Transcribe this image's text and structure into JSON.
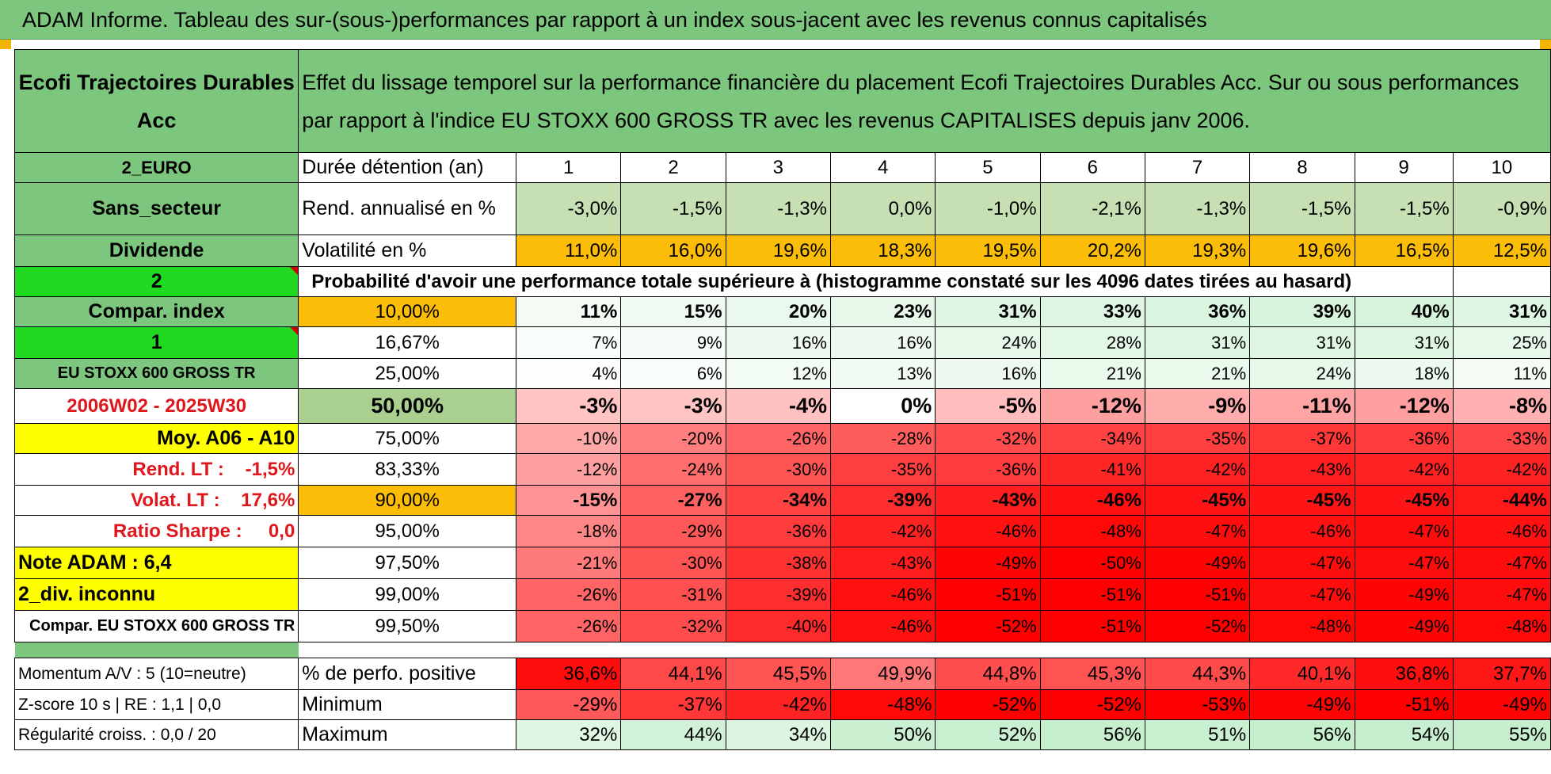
{
  "banner_title": "ADAM Informe. Tableau des sur-(sous-)performances par rapport à un index sous-jacent avec les revenus connus capitalisés",
  "fund_name": "Ecofi Trajectoires Durables Acc",
  "description": "Effet du lissage temporel sur la performance financière du placement Ecofi Trajectoires Durables Acc. Sur ou sous performances par rapport à l'indice EU STOXX 600 GROSS TR avec les revenus CAPITALISES depuis janv 2006.",
  "left_labels": {
    "currency": "2_EURO",
    "sector": "Sans_secteur",
    "dividend": "Dividende",
    "param1": "2",
    "compar_index": "Compar. index",
    "param2": "1",
    "index_name": "EU STOXX 600 GROSS TR",
    "period": "2006W02 - 2025W30",
    "moy": "Moy. A06 - A10",
    "rend_lt": "Rend. LT :    -1,5%",
    "volat_lt": "Volat. LT :    17,6%",
    "sharpe": "Ratio Sharpe :     0,0",
    "note": "Note ADAM : 6,4",
    "div": "2_div. inconnu",
    "compar_name": "Compar. EU STOXX 600 GROSS TR"
  },
  "header": {
    "duration_label": "Durée détention (an)",
    "years": [
      "1",
      "2",
      "3",
      "4",
      "5",
      "6",
      "7",
      "8",
      "9",
      "10"
    ]
  },
  "rend": {
    "label": "Rend. annualisé en %",
    "values": [
      "-3,0%",
      "-1,5%",
      "-1,3%",
      "0,0%",
      "-1,0%",
      "-2,1%",
      "-1,3%",
      "-1,5%",
      "-1,5%",
      "-0,9%"
    ]
  },
  "vol": {
    "label": "Volatilité en %",
    "values": [
      "11,0%",
      "16,0%",
      "19,6%",
      "18,3%",
      "19,5%",
      "20,2%",
      "19,3%",
      "19,6%",
      "16,5%",
      "12,5%"
    ]
  },
  "prob_title": "Probabilité d'avoir une performance totale supérieure à (histogramme constaté sur les 4096 dates tirées au hasard)",
  "prob_rows": [
    {
      "pct": "10,00%",
      "values": [
        "11%",
        "15%",
        "20%",
        "23%",
        "31%",
        "33%",
        "36%",
        "39%",
        "40%",
        "31%"
      ]
    },
    {
      "pct": "16,67%",
      "values": [
        "7%",
        "9%",
        "16%",
        "16%",
        "24%",
        "28%",
        "31%",
        "31%",
        "31%",
        "25%"
      ]
    },
    {
      "pct": "25,00%",
      "values": [
        "4%",
        "6%",
        "12%",
        "13%",
        "16%",
        "21%",
        "21%",
        "24%",
        "18%",
        "11%"
      ]
    },
    {
      "pct": "50,00%",
      "values": [
        "-3%",
        "-3%",
        "-4%",
        "0%",
        "-5%",
        "-12%",
        "-9%",
        "-11%",
        "-12%",
        "-8%"
      ]
    },
    {
      "pct": "75,00%",
      "values": [
        "-10%",
        "-20%",
        "-26%",
        "-28%",
        "-32%",
        "-34%",
        "-35%",
        "-37%",
        "-36%",
        "-33%"
      ]
    },
    {
      "pct": "83,33%",
      "values": [
        "-12%",
        "-24%",
        "-30%",
        "-35%",
        "-36%",
        "-41%",
        "-42%",
        "-43%",
        "-42%",
        "-42%"
      ]
    },
    {
      "pct": "90,00%",
      "values": [
        "-15%",
        "-27%",
        "-34%",
        "-39%",
        "-43%",
        "-46%",
        "-45%",
        "-45%",
        "-45%",
        "-44%"
      ]
    },
    {
      "pct": "95,00%",
      "values": [
        "-18%",
        "-29%",
        "-36%",
        "-42%",
        "-46%",
        "-48%",
        "-47%",
        "-46%",
        "-47%",
        "-46%"
      ]
    },
    {
      "pct": "97,50%",
      "values": [
        "-21%",
        "-30%",
        "-38%",
        "-43%",
        "-49%",
        "-50%",
        "-49%",
        "-47%",
        "-47%",
        "-47%"
      ]
    },
    {
      "pct": "99,00%",
      "values": [
        "-26%",
        "-31%",
        "-39%",
        "-46%",
        "-51%",
        "-51%",
        "-51%",
        "-47%",
        "-49%",
        "-47%"
      ]
    },
    {
      "pct": "99,50%",
      "values": [
        "-26%",
        "-32%",
        "-40%",
        "-46%",
        "-52%",
        "-51%",
        "-52%",
        "-48%",
        "-49%",
        "-48%"
      ]
    }
  ],
  "bottom": {
    "momentum": "Momentum A/V : 5 (10=neutre)",
    "zscore": "Z-score 10 s | RE : 1,1 | 0,0",
    "regularite": "Régularité croiss. : 0,0 / 20",
    "pos_label": "% de perfo. positive",
    "pos_values": [
      "36,6%",
      "44,1%",
      "45,5%",
      "49,9%",
      "44,8%",
      "45,3%",
      "44,3%",
      "40,1%",
      "36,8%",
      "37,7%"
    ],
    "min_label": "Minimum",
    "min_values": [
      "-29%",
      "-37%",
      "-42%",
      "-48%",
      "-52%",
      "-52%",
      "-53%",
      "-49%",
      "-51%",
      "-49%"
    ],
    "max_label": "Maximum",
    "max_values": [
      "32%",
      "44%",
      "34%",
      "50%",
      "52%",
      "56%",
      "51%",
      "56%",
      "54%",
      "55%"
    ]
  },
  "colors": {
    "header_green": "#7dc67d",
    "bright_green": "#22d922",
    "yellow": "#ffff00",
    "orange": "#fbbd08",
    "red": "#ff0000",
    "text_red": "#e0161d"
  }
}
